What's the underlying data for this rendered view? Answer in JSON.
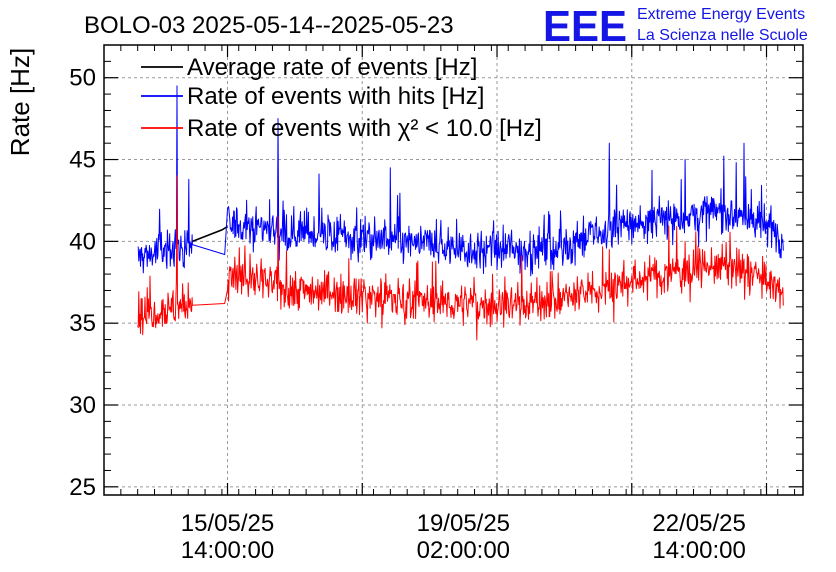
{
  "header": {
    "title": "BOLO-03 2025-05-14--2025-05-23",
    "logo_text": "EEE",
    "logo_line1": "Extreme Energy Events",
    "logo_line2": "La Scienza nelle Scuole",
    "logo_color": "#1515e6"
  },
  "chart_data": {
    "type": "line",
    "title": "BOLO-03 2025-05-14--2025-05-23",
    "ylabel": "Rate [Hz]",
    "xlabel": "",
    "ylim": [
      24.5,
      52
    ],
    "xlim": [
      "2025-05-13T18:00:00",
      "2025-05-24T03:00:00"
    ],
    "grid": true,
    "legend_position": "top-left",
    "y_ticks": [
      25,
      30,
      35,
      40,
      45,
      50
    ],
    "x_tick_labels": [
      {
        "x": "2025-05-15T14:00:00",
        "line1": "15/05/25",
        "line2": "14:00:00"
      },
      {
        "x": "2025-05-19T02:00:00",
        "line1": "19/05/25",
        "line2": "02:00:00"
      },
      {
        "x": "2025-05-22T14:00:00",
        "line1": "22/05/25",
        "line2": "14:00:00"
      }
    ],
    "gaps": [
      [
        "2025-05-15T01:30:00",
        "2025-05-15T14:00:00"
      ]
    ],
    "series": [
      {
        "name": "Average rate of events [Hz]",
        "color": "#000000",
        "points": [
          [
            "2025-05-15T01:30:00",
            40.0
          ],
          [
            "2025-05-15T12:00:00",
            40.7
          ],
          [
            "2025-05-15T14:00:00",
            40.9
          ]
        ]
      },
      {
        "name": "Rate of events with hits [Hz]",
        "color": "#0000ff",
        "trend": [
          [
            "2025-05-14T06:00:00",
            39.0
          ],
          [
            "2025-05-14T16:00:00",
            39.5
          ],
          [
            "2025-05-15T01:30:00",
            39.8
          ],
          [
            "2025-05-15T14:00:00",
            41.0
          ],
          [
            "2025-05-16T00:00:00",
            41.0
          ],
          [
            "2025-05-16T12:00:00",
            40.6
          ],
          [
            "2025-05-17T12:00:00",
            40.2
          ],
          [
            "2025-05-18T12:00:00",
            39.8
          ],
          [
            "2025-05-19T12:00:00",
            39.4
          ],
          [
            "2025-05-20T12:00:00",
            39.6
          ],
          [
            "2025-05-21T00:00:00",
            40.3
          ],
          [
            "2025-05-21T12:00:00",
            41.0
          ],
          [
            "2025-05-22T12:00:00",
            41.6
          ],
          [
            "2025-05-23T00:00:00",
            41.8
          ],
          [
            "2025-05-23T12:00:00",
            41.1
          ],
          [
            "2025-05-23T20:00:00",
            40.2
          ]
        ],
        "noise": 1.3,
        "spikes": [
          [
            "2025-05-14T20:00:00",
            49.5
          ],
          [
            "2025-05-16T08:00:00",
            47.5
          ],
          [
            "2025-05-18T00:00:00",
            44.5
          ],
          [
            "2025-05-21T06:00:00",
            46.0
          ],
          [
            "2025-05-22T09:00:00",
            45.0
          ],
          [
            "2025-05-23T06:00:00",
            46.0
          ]
        ]
      },
      {
        "name": "Rate of events with χ² < 10.0 [Hz]",
        "color": "#ff0000",
        "trend": [
          [
            "2025-05-14T06:00:00",
            35.5
          ],
          [
            "2025-05-14T16:00:00",
            35.9
          ],
          [
            "2025-05-15T01:30:00",
            36.1
          ],
          [
            "2025-05-15T14:00:00",
            37.8
          ],
          [
            "2025-05-16T00:00:00",
            37.6
          ],
          [
            "2025-05-16T12:00:00",
            37.1
          ],
          [
            "2025-05-17T12:00:00",
            36.8
          ],
          [
            "2025-05-18T12:00:00",
            36.3
          ],
          [
            "2025-05-19T12:00:00",
            36.1
          ],
          [
            "2025-05-20T12:00:00",
            36.4
          ],
          [
            "2025-05-21T00:00:00",
            36.9
          ],
          [
            "2025-05-21T12:00:00",
            37.5
          ],
          [
            "2025-05-22T12:00:00",
            38.4
          ],
          [
            "2025-05-23T00:00:00",
            38.5
          ],
          [
            "2025-05-23T12:00:00",
            37.8
          ],
          [
            "2025-05-23T20:00:00",
            36.8
          ]
        ],
        "noise": 1.2,
        "spikes": [
          [
            "2025-05-14T20:00:00",
            44.0
          ],
          [
            "2025-05-16T08:00:00",
            41.5
          ],
          [
            "2025-05-21T06:00:00",
            39.5
          ],
          [
            "2025-05-22T09:00:00",
            40.0
          ]
        ]
      }
    ]
  }
}
